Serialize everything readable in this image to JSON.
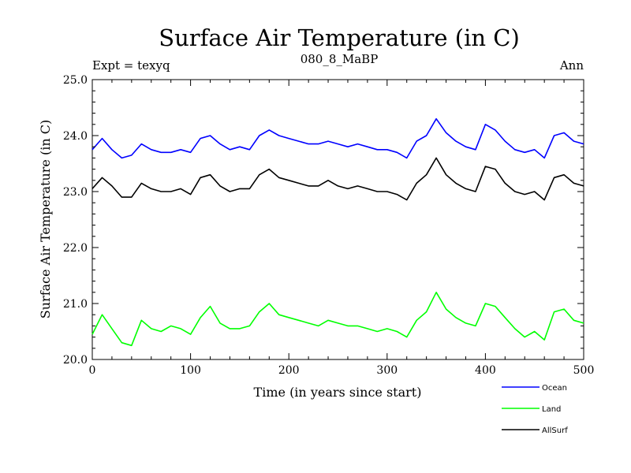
{
  "chart_data": {
    "type": "line",
    "title": "Surface Air Temperature (in C)",
    "subtitle_left": "Expt = texyq",
    "subtitle_center": "080_8_MaBP",
    "subtitle_right": "Ann",
    "xlabel": "Time (in years since start)",
    "ylabel": "Surface Air Temperature (in C)",
    "xlim": [
      0,
      500
    ],
    "ylim": [
      20.0,
      25.0
    ],
    "x_ticks": [
      0,
      100,
      200,
      300,
      400,
      500
    ],
    "x_tick_labels": [
      "0",
      "100",
      "200",
      "300",
      "400",
      "500"
    ],
    "y_ticks": [
      20.0,
      21.0,
      22.0,
      23.0,
      24.0,
      25.0
    ],
    "y_tick_labels": [
      "20.0",
      "21.0",
      "22.0",
      "23.0",
      "24.0",
      "25.0"
    ],
    "grid": false,
    "legend_position": "bottom-right, outside plot",
    "x": [
      0,
      10,
      20,
      30,
      40,
      50,
      60,
      70,
      80,
      90,
      100,
      110,
      120,
      130,
      140,
      150,
      160,
      170,
      180,
      190,
      200,
      210,
      220,
      230,
      240,
      250,
      260,
      270,
      280,
      290,
      300,
      310,
      320,
      330,
      340,
      350,
      360,
      370,
      380,
      390,
      400,
      410,
      420,
      430,
      440,
      450,
      460,
      470,
      480,
      490,
      500
    ],
    "series": [
      {
        "name": "Ocean",
        "color": "#0000ff",
        "values": [
          23.75,
          23.95,
          23.75,
          23.6,
          23.65,
          23.85,
          23.75,
          23.7,
          23.7,
          23.75,
          23.7,
          23.95,
          24.0,
          23.85,
          23.75,
          23.8,
          23.75,
          24.0,
          24.1,
          24.0,
          23.95,
          23.9,
          23.85,
          23.85,
          23.9,
          23.85,
          23.8,
          23.85,
          23.8,
          23.75,
          23.75,
          23.7,
          23.6,
          23.9,
          24.0,
          24.3,
          24.05,
          23.9,
          23.8,
          23.75,
          24.2,
          24.1,
          23.9,
          23.75,
          23.7,
          23.75,
          23.6,
          24.0,
          24.05,
          23.9,
          23.85
        ]
      },
      {
        "name": "Land",
        "color": "#00ff00",
        "values": [
          20.45,
          20.8,
          20.55,
          20.3,
          20.25,
          20.7,
          20.55,
          20.5,
          20.6,
          20.55,
          20.45,
          20.75,
          20.95,
          20.65,
          20.55,
          20.55,
          20.6,
          20.85,
          21.0,
          20.8,
          20.75,
          20.7,
          20.65,
          20.6,
          20.7,
          20.65,
          20.6,
          20.6,
          20.55,
          20.5,
          20.55,
          20.5,
          20.4,
          20.7,
          20.85,
          21.2,
          20.9,
          20.75,
          20.65,
          20.6,
          21.0,
          20.95,
          20.75,
          20.55,
          20.4,
          20.5,
          20.35,
          20.85,
          20.9,
          20.7,
          20.65
        ]
      },
      {
        "name": "AllSurf",
        "color": "#000000",
        "values": [
          23.05,
          23.25,
          23.1,
          22.9,
          22.9,
          23.15,
          23.05,
          23.0,
          23.0,
          23.05,
          22.95,
          23.25,
          23.3,
          23.1,
          23.0,
          23.05,
          23.05,
          23.3,
          23.4,
          23.25,
          23.2,
          23.15,
          23.1,
          23.1,
          23.2,
          23.1,
          23.05,
          23.1,
          23.05,
          23.0,
          23.0,
          22.95,
          22.85,
          23.15,
          23.3,
          23.6,
          23.3,
          23.15,
          23.05,
          23.0,
          23.45,
          23.4,
          23.15,
          23.0,
          22.95,
          23.0,
          22.85,
          23.25,
          23.3,
          23.15,
          23.1
        ]
      }
    ]
  }
}
